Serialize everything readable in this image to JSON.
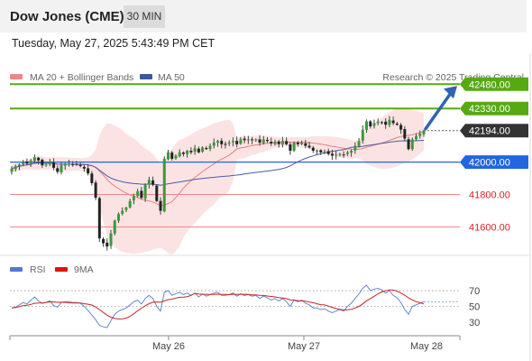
{
  "header": {
    "title": "Dow Jones (CME)",
    "interval": "30 MIN"
  },
  "timestamp": "Tuesday, May 27, 2025 5:43:49 PM CET",
  "legend": {
    "bollinger": "MA 20 + Bollinger Bands",
    "ma50": "MA 50",
    "credit": "Research © 2025 Trading Central",
    "rsi": "RSI",
    "rsi_ma": "9MA"
  },
  "colors": {
    "candle_up": "#3a9a3a",
    "candle_down": "#222222",
    "ma20": "#e58080",
    "ma50": "#4a5ba8",
    "band_fill": "#fbdcdc",
    "resistance": "#55aa11",
    "support": "#2266dd",
    "support2": "#f08888",
    "last_price": "#333333",
    "rsi": "#6688cc",
    "rsi_ma": "#cc2222"
  },
  "chart_data": {
    "type": "candlestick",
    "price_range": [
      41425,
      42665
    ],
    "x_labels": [
      "May 26",
      "May 27",
      "May 28"
    ],
    "levels": [
      {
        "label": "42480.00",
        "value": 42480,
        "kind": "resistance"
      },
      {
        "label": "42330.00",
        "value": 42330,
        "kind": "resistance"
      },
      {
        "label": "42194.00",
        "value": 42194,
        "kind": "last"
      },
      {
        "label": "42000.00",
        "value": 42000,
        "kind": "pivot"
      },
      {
        "label": "41800.00",
        "value": 41800,
        "kind": "support"
      },
      {
        "label": "41600.00",
        "value": 41600,
        "kind": "support"
      }
    ],
    "closes": [
      41960,
      41975,
      41985,
      42000,
      41990,
      42010,
      42030,
      42010,
      41980,
      41985,
      42000,
      41965,
      41940,
      41980,
      41990,
      41990,
      41985,
      41985,
      41975,
      41960,
      41930,
      41870,
      41780,
      41530,
      41500,
      41480,
      41560,
      41640,
      41680,
      41700,
      41720,
      41760,
      41790,
      41820,
      41780,
      41860,
      41890,
      41860,
      41760,
      41700,
      42020,
      42060,
      42020,
      42040,
      42060,
      42050,
      42070,
      42060,
      42085,
      42060,
      42090,
      42080,
      42100,
      42120,
      42130,
      42110,
      42110,
      42120,
      42130,
      42110,
      42140,
      42135,
      42140,
      42135,
      42140,
      42120,
      42140,
      42130,
      42115,
      42125,
      42110,
      42130,
      42110,
      42070,
      42120,
      42110,
      42120,
      42100,
      42090,
      42070,
      42070,
      42060,
      42065,
      42050,
      42040,
      42045,
      42050,
      42045,
      42060,
      42070,
      42100,
      42130,
      42200,
      42250,
      42220,
      42240,
      42250,
      42245,
      42230,
      42260,
      42240,
      42230,
      42200,
      42145,
      42080,
      42140,
      42160,
      42175,
      42194
    ],
    "rsi": {
      "levels": [
        70,
        50,
        30
      ],
      "range": [
        15,
        85
      ],
      "values": [
        48,
        49,
        52,
        55,
        53,
        58,
        62,
        57,
        54,
        55,
        57,
        51,
        49,
        55,
        56,
        56,
        55,
        55,
        54,
        50,
        45,
        39,
        33,
        26,
        24,
        23,
        32,
        40,
        44,
        46,
        48,
        52,
        56,
        58,
        53,
        60,
        64,
        60,
        50,
        44,
        68,
        70,
        64,
        66,
        68,
        65,
        67,
        64,
        67,
        62,
        66,
        63,
        65,
        67,
        68,
        64,
        64,
        65,
        67,
        63,
        66,
        64,
        65,
        63,
        64,
        60,
        63,
        61,
        58,
        60,
        57,
        60,
        56,
        50,
        58,
        56,
        58,
        54,
        52,
        48,
        48,
        46,
        47,
        44,
        42,
        44,
        46,
        44,
        50,
        54,
        60,
        66,
        73,
        77,
        70,
        72,
        73,
        71,
        67,
        70,
        64,
        61,
        55,
        46,
        40,
        50,
        52,
        54,
        56
      ]
    }
  }
}
